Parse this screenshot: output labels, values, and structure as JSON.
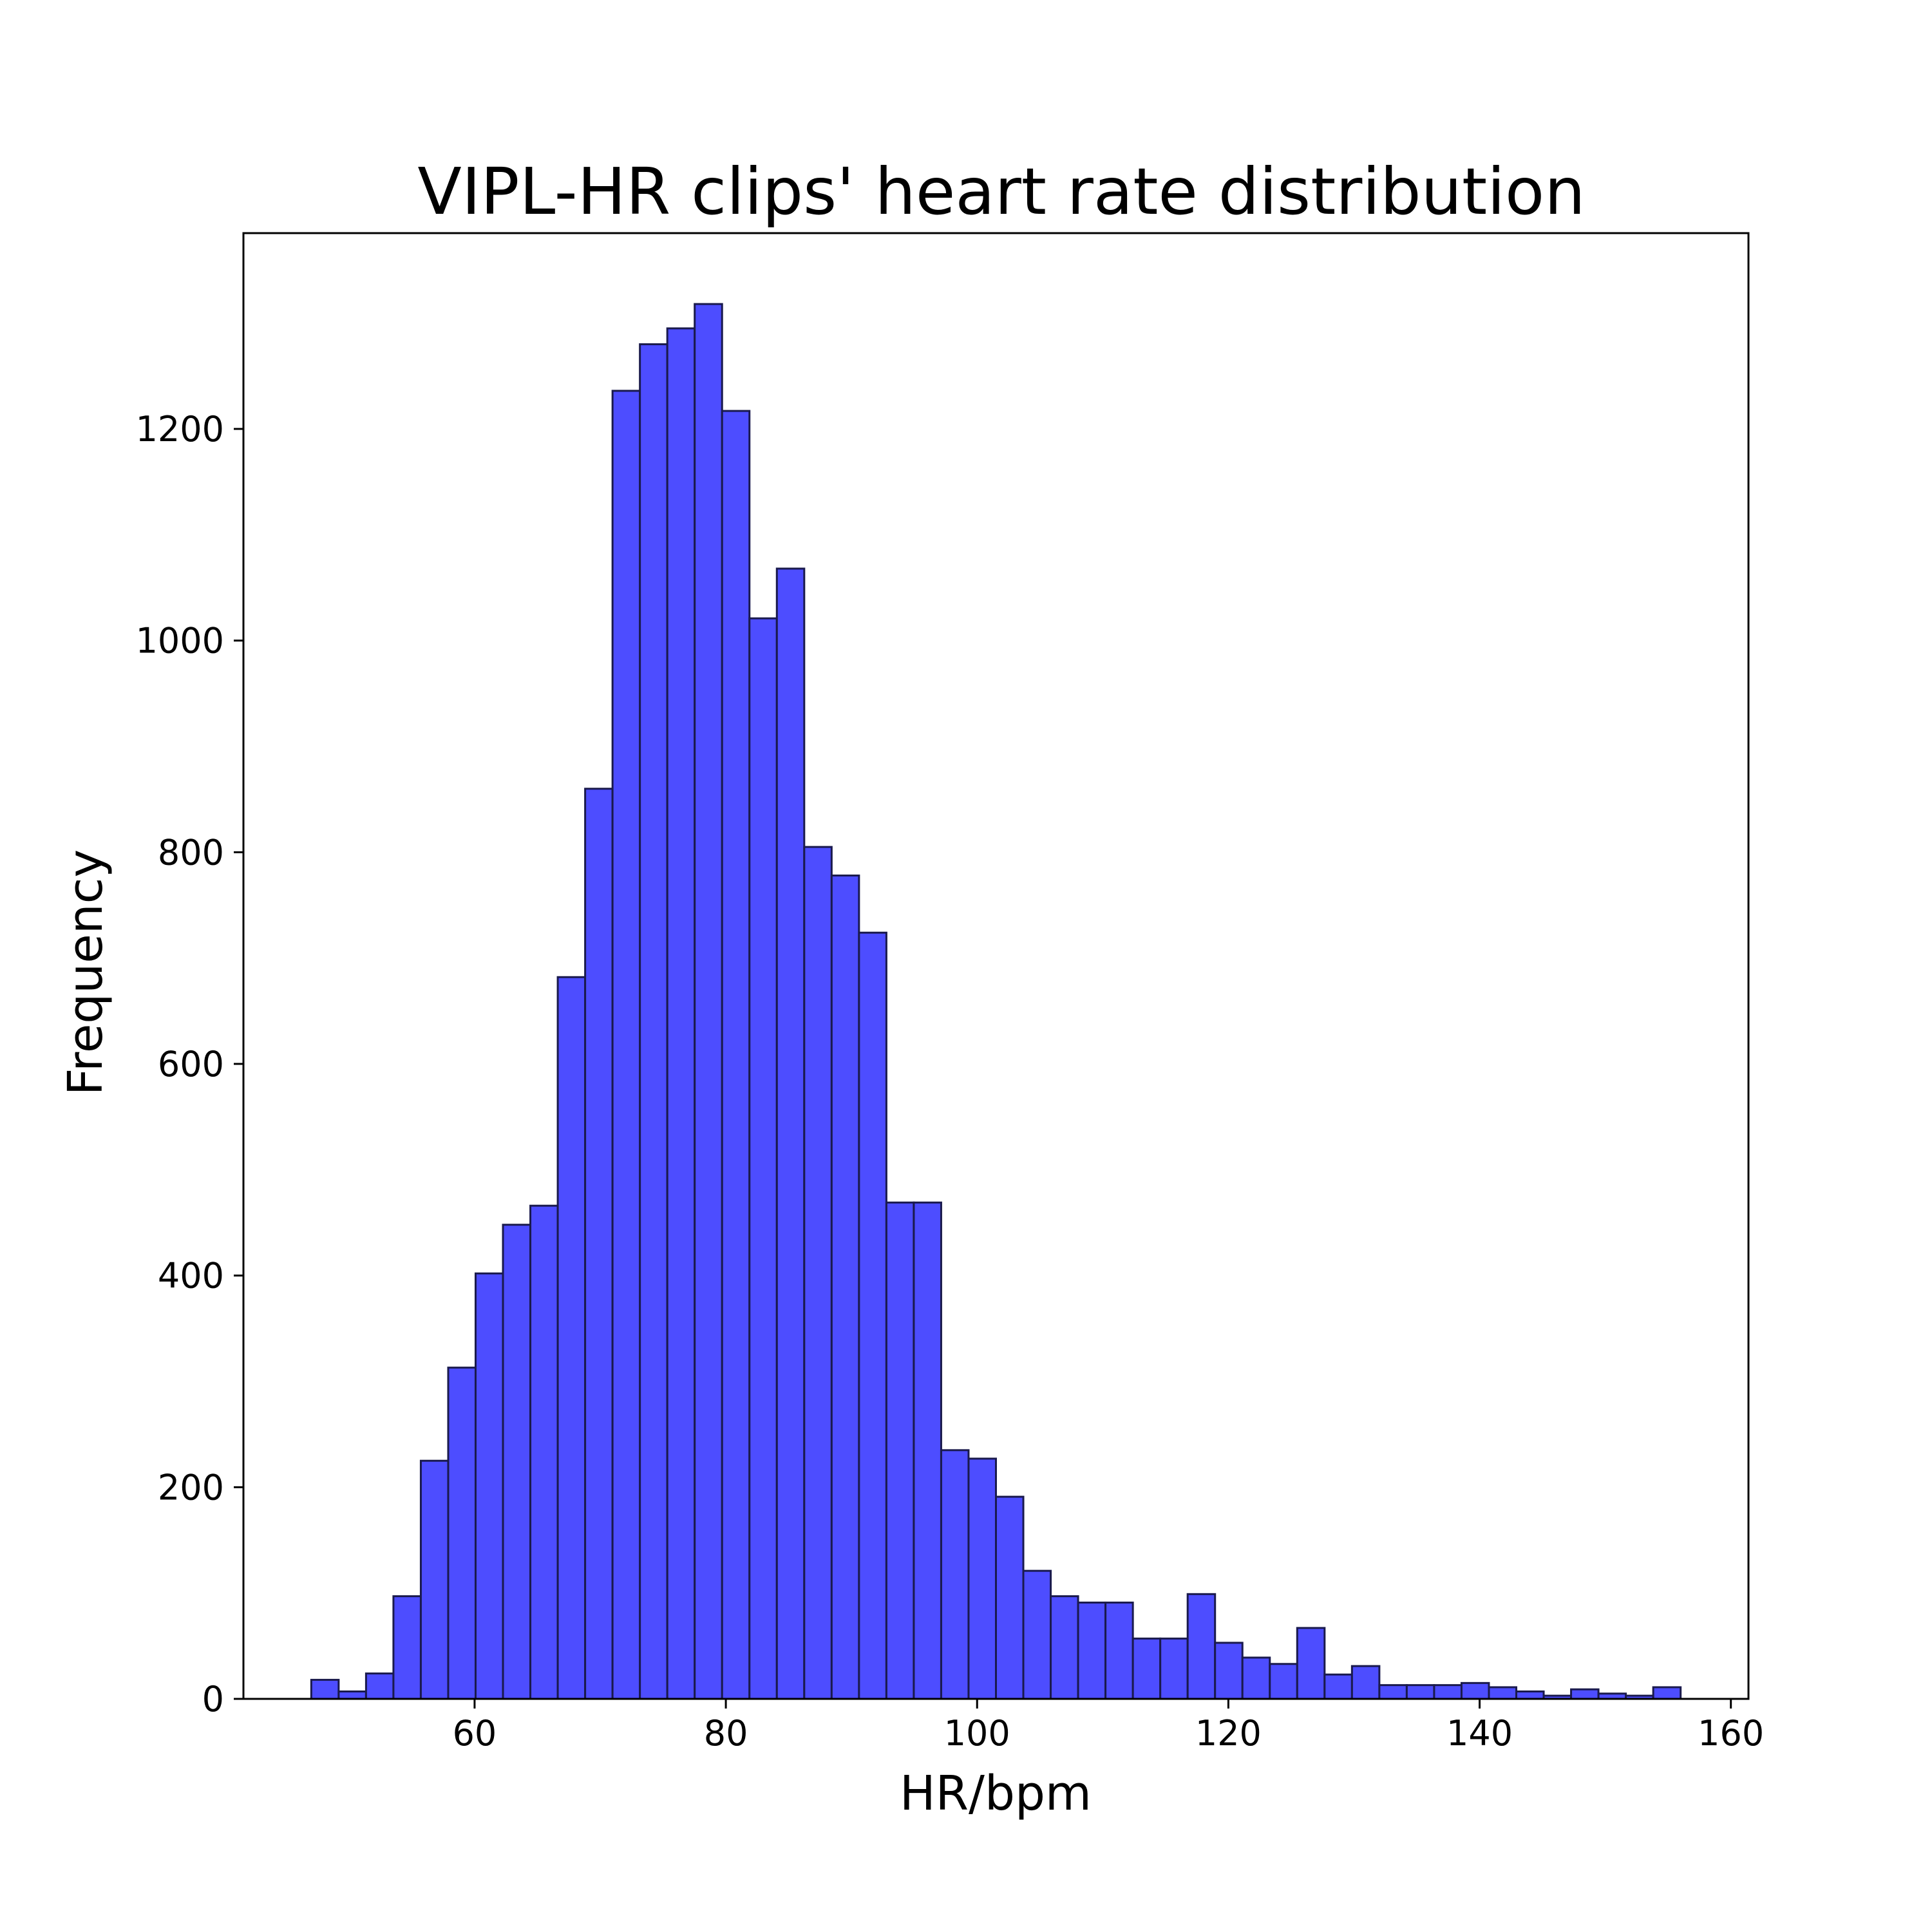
{
  "chart_data": {
    "type": "bar",
    "title": "VIPL-HR clips' heart rate distribution",
    "xlabel": "HR/bpm",
    "ylabel": "Frequency",
    "xlim": [
      41.6,
      161.4
    ],
    "ylim": [
      0,
      1385
    ],
    "xticks": [
      60,
      80,
      100,
      120,
      140,
      160
    ],
    "yticks": [
      0,
      200,
      400,
      600,
      800,
      1000,
      1200
    ],
    "grid": false,
    "bar_color": "#4d4dff",
    "edge_color": "#1a1a4d",
    "bin_start": 47.0,
    "bin_width": 2.18,
    "values": [
      18,
      7,
      24,
      97,
      225,
      313,
      402,
      448,
      466,
      682,
      860,
      1236,
      1280,
      1295,
      1318,
      1217,
      1021,
      1068,
      805,
      778,
      724,
      469,
      469,
      235,
      227,
      191,
      121,
      97,
      91,
      91,
      57,
      57,
      99,
      53,
      39,
      33,
      67,
      23,
      31,
      13,
      13,
      13,
      15,
      11,
      7,
      3,
      9,
      5,
      3,
      11
    ]
  }
}
